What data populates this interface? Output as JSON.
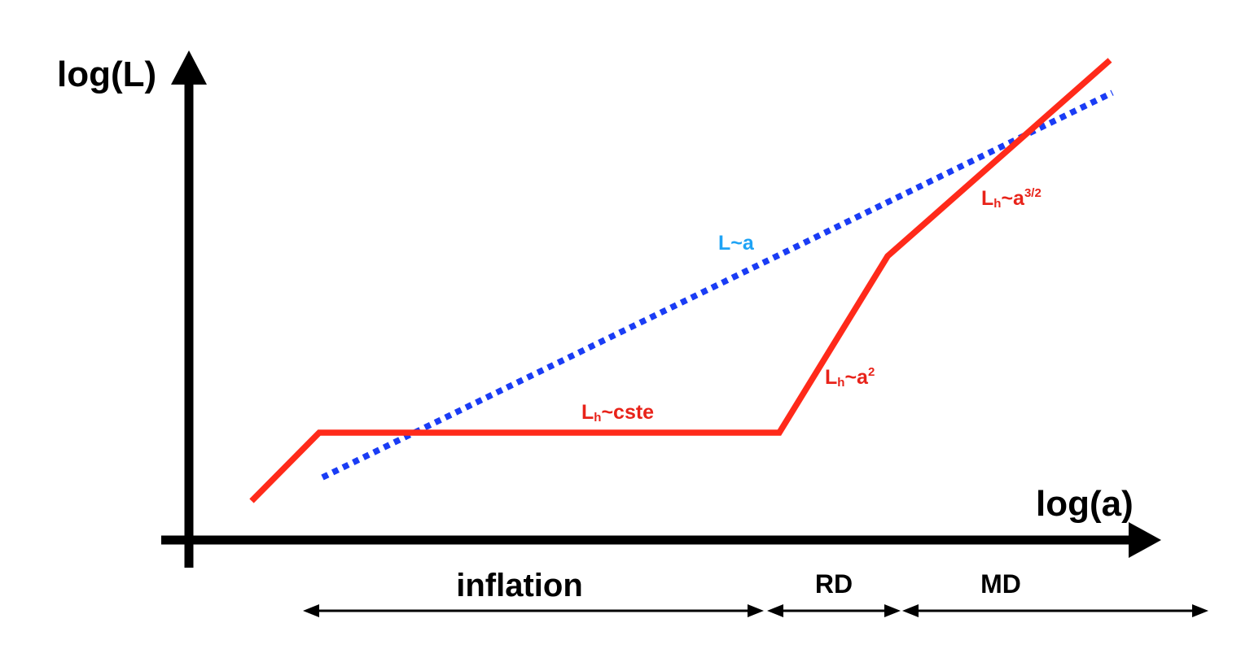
{
  "axes": {
    "y_label": "log(L)",
    "x_label": "log(a)"
  },
  "curves": {
    "hubble": {
      "segments": {
        "cste": {
          "base": "L",
          "sub": "h",
          "rest": "~cste"
        },
        "rd": {
          "base": "L",
          "sub": "h",
          "rest": "~a",
          "sup": "2"
        },
        "md": {
          "base": "L",
          "sub": "h",
          "rest": "~a",
          "sup": "3/2"
        }
      }
    },
    "scale": {
      "label": "L~a"
    }
  },
  "eras": {
    "inflation": "inflation",
    "rd": "RD",
    "md": "MD"
  },
  "colors": {
    "axis": "#000000",
    "hubble_curve": "#ff2a1a",
    "hubble_label": "#e8231a",
    "scale_curve": "#1a3cf5",
    "scale_label": "#1ea3f5"
  }
}
